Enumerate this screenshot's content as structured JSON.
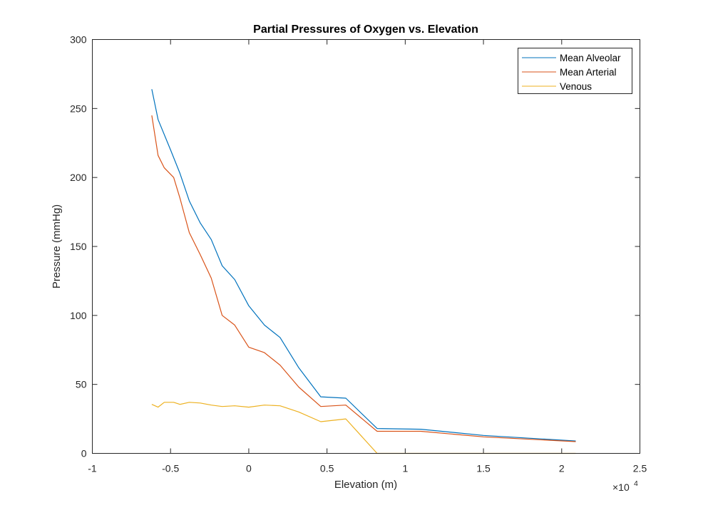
{
  "chart_data": {
    "type": "line",
    "title": "Partial Pressures of Oxygen vs. Elevation",
    "xlabel": "Elevation (m)",
    "ylabel": "Pressure (mmHg)",
    "x_exponent_label": "×10",
    "x_exponent_power": "4",
    "xlim": [
      -1,
      2.5
    ],
    "ylim": [
      0,
      300
    ],
    "x_scale": 10000,
    "xticks": [
      -1,
      -0.5,
      0,
      0.5,
      1,
      1.5,
      2,
      2.5
    ],
    "xtick_labels": [
      "-1",
      "-0.5",
      "0",
      "0.5",
      "1",
      "1.5",
      "2",
      "2.5"
    ],
    "yticks": [
      0,
      50,
      100,
      150,
      200,
      250,
      300
    ],
    "ytick_labels": [
      "0",
      "50",
      "100",
      "150",
      "200",
      "250",
      "300"
    ],
    "grid": false,
    "legend_position": "top-right",
    "series": [
      {
        "name": "Mean Alveolar",
        "color": "#0072BD",
        "x": [
          -0.62,
          -0.58,
          -0.5,
          -0.44,
          -0.38,
          -0.31,
          -0.24,
          -0.17,
          -0.09,
          0.0,
          0.1,
          0.2,
          0.32,
          0.46,
          0.62,
          0.82,
          1.1,
          1.5,
          2.09
        ],
        "y": [
          264,
          242,
          220,
          203,
          183,
          167,
          155,
          136,
          126,
          107,
          93,
          84,
          62,
          41,
          40,
          18,
          17.5,
          13,
          9
        ]
      },
      {
        "name": "Mean Arterial",
        "color": "#D95319",
        "x": [
          -0.62,
          -0.58,
          -0.54,
          -0.48,
          -0.44,
          -0.38,
          -0.31,
          -0.24,
          -0.17,
          -0.09,
          0.0,
          0.1,
          0.2,
          0.32,
          0.46,
          0.62,
          0.82,
          1.1,
          1.5,
          2.09
        ],
        "y": [
          245,
          216,
          207,
          200,
          185,
          160,
          144,
          127,
          100,
          93,
          77,
          73,
          64,
          48,
          34,
          35,
          16,
          16,
          12,
          8.5
        ]
      },
      {
        "name": "Venous",
        "color": "#EDB120",
        "x": [
          -0.62,
          -0.58,
          -0.54,
          -0.48,
          -0.44,
          -0.38,
          -0.31,
          -0.24,
          -0.17,
          -0.09,
          0.0,
          0.1,
          0.2,
          0.32,
          0.46,
          0.62,
          0.82,
          1.1,
          1.5,
          2.09
        ],
        "y": [
          35.5,
          33.5,
          37,
          37,
          35.5,
          37,
          36.5,
          35,
          34,
          34.5,
          33.5,
          35,
          34.5,
          30,
          23,
          25,
          0,
          0,
          0,
          0
        ]
      }
    ]
  }
}
